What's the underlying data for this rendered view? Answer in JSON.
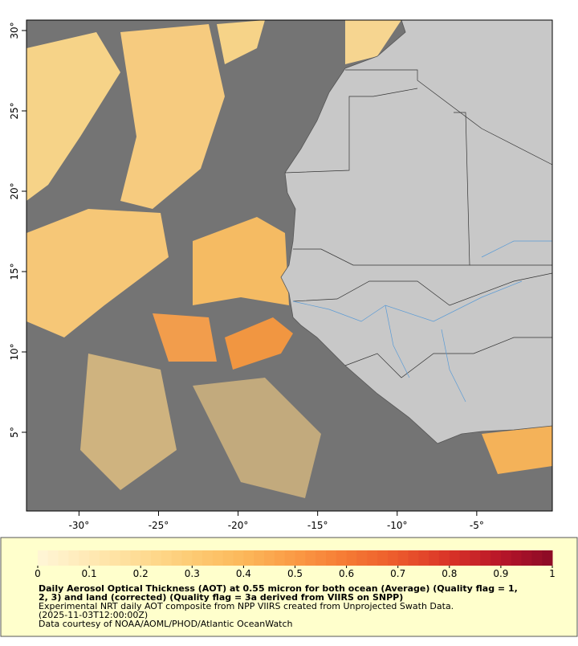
{
  "map": {
    "xlim": [
      -33.3,
      -0.25
    ],
    "ylim": [
      0.1,
      30.65
    ],
    "xticks": [
      {
        "value": -30,
        "label": "-30°"
      },
      {
        "value": -25,
        "label": "-25°"
      },
      {
        "value": -20,
        "label": "-20°"
      },
      {
        "value": -15,
        "label": "-15°"
      },
      {
        "value": -10,
        "label": "-10°"
      },
      {
        "value": -5,
        "label": "-5°"
      }
    ],
    "yticks": [
      {
        "value": 5,
        "label": "5°"
      },
      {
        "value": 10,
        "label": "10°"
      },
      {
        "value": 15,
        "label": "15°"
      },
      {
        "value": 20,
        "label": "20°"
      },
      {
        "value": 25,
        "label": "25°"
      },
      {
        "value": 30,
        "label": "30°"
      }
    ]
  },
  "colorbar": {
    "lim": [
      0,
      1
    ],
    "ticks": [
      0,
      0.1,
      0.2,
      0.3,
      0.4,
      0.5,
      0.6,
      0.7,
      0.8,
      0.9,
      1
    ],
    "colors": [
      "#fff6d8",
      "#ffe9b4",
      "#fedc94",
      "#fdcb74",
      "#fcb85a",
      "#fa9a45",
      "#f57a34",
      "#ec5a2c",
      "#d93327",
      "#b81629",
      "#8a0a26"
    ]
  },
  "caption": {
    "title_lines": [
      "Daily Aerosol Optical Thickness (AOT) at 0.55 micron for both ocean (Average) (Quality flag = 1,",
      "2, 3) and land (corrected) (Quality flag = 3a derived from VIIRS on SNPP)"
    ],
    "lines": [
      "Experimental NRT daily AOT composite from NPP VIIRS created from Unprojected Swath Data.",
      "(2025-11-03T12:00:00Z)",
      "Data courtesy of NOAA/AOML/PHOD/Atlantic OceanWatch"
    ]
  }
}
